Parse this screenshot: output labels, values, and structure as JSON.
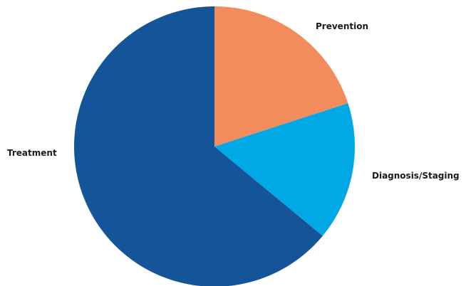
{
  "chart_data": {
    "type": "pie",
    "title": "",
    "start_angle_deg": 0,
    "direction": "clockwise",
    "slices": [
      {
        "label": "Prevention",
        "value": 20,
        "color": "#F28C5D"
      },
      {
        "label": "Diagnosis/Staging",
        "value": 16,
        "color": "#00A9E6"
      },
      {
        "label": "Treatment",
        "value": 64,
        "color": "#14559A"
      }
    ],
    "legend": "none",
    "labels_position": "outside"
  }
}
